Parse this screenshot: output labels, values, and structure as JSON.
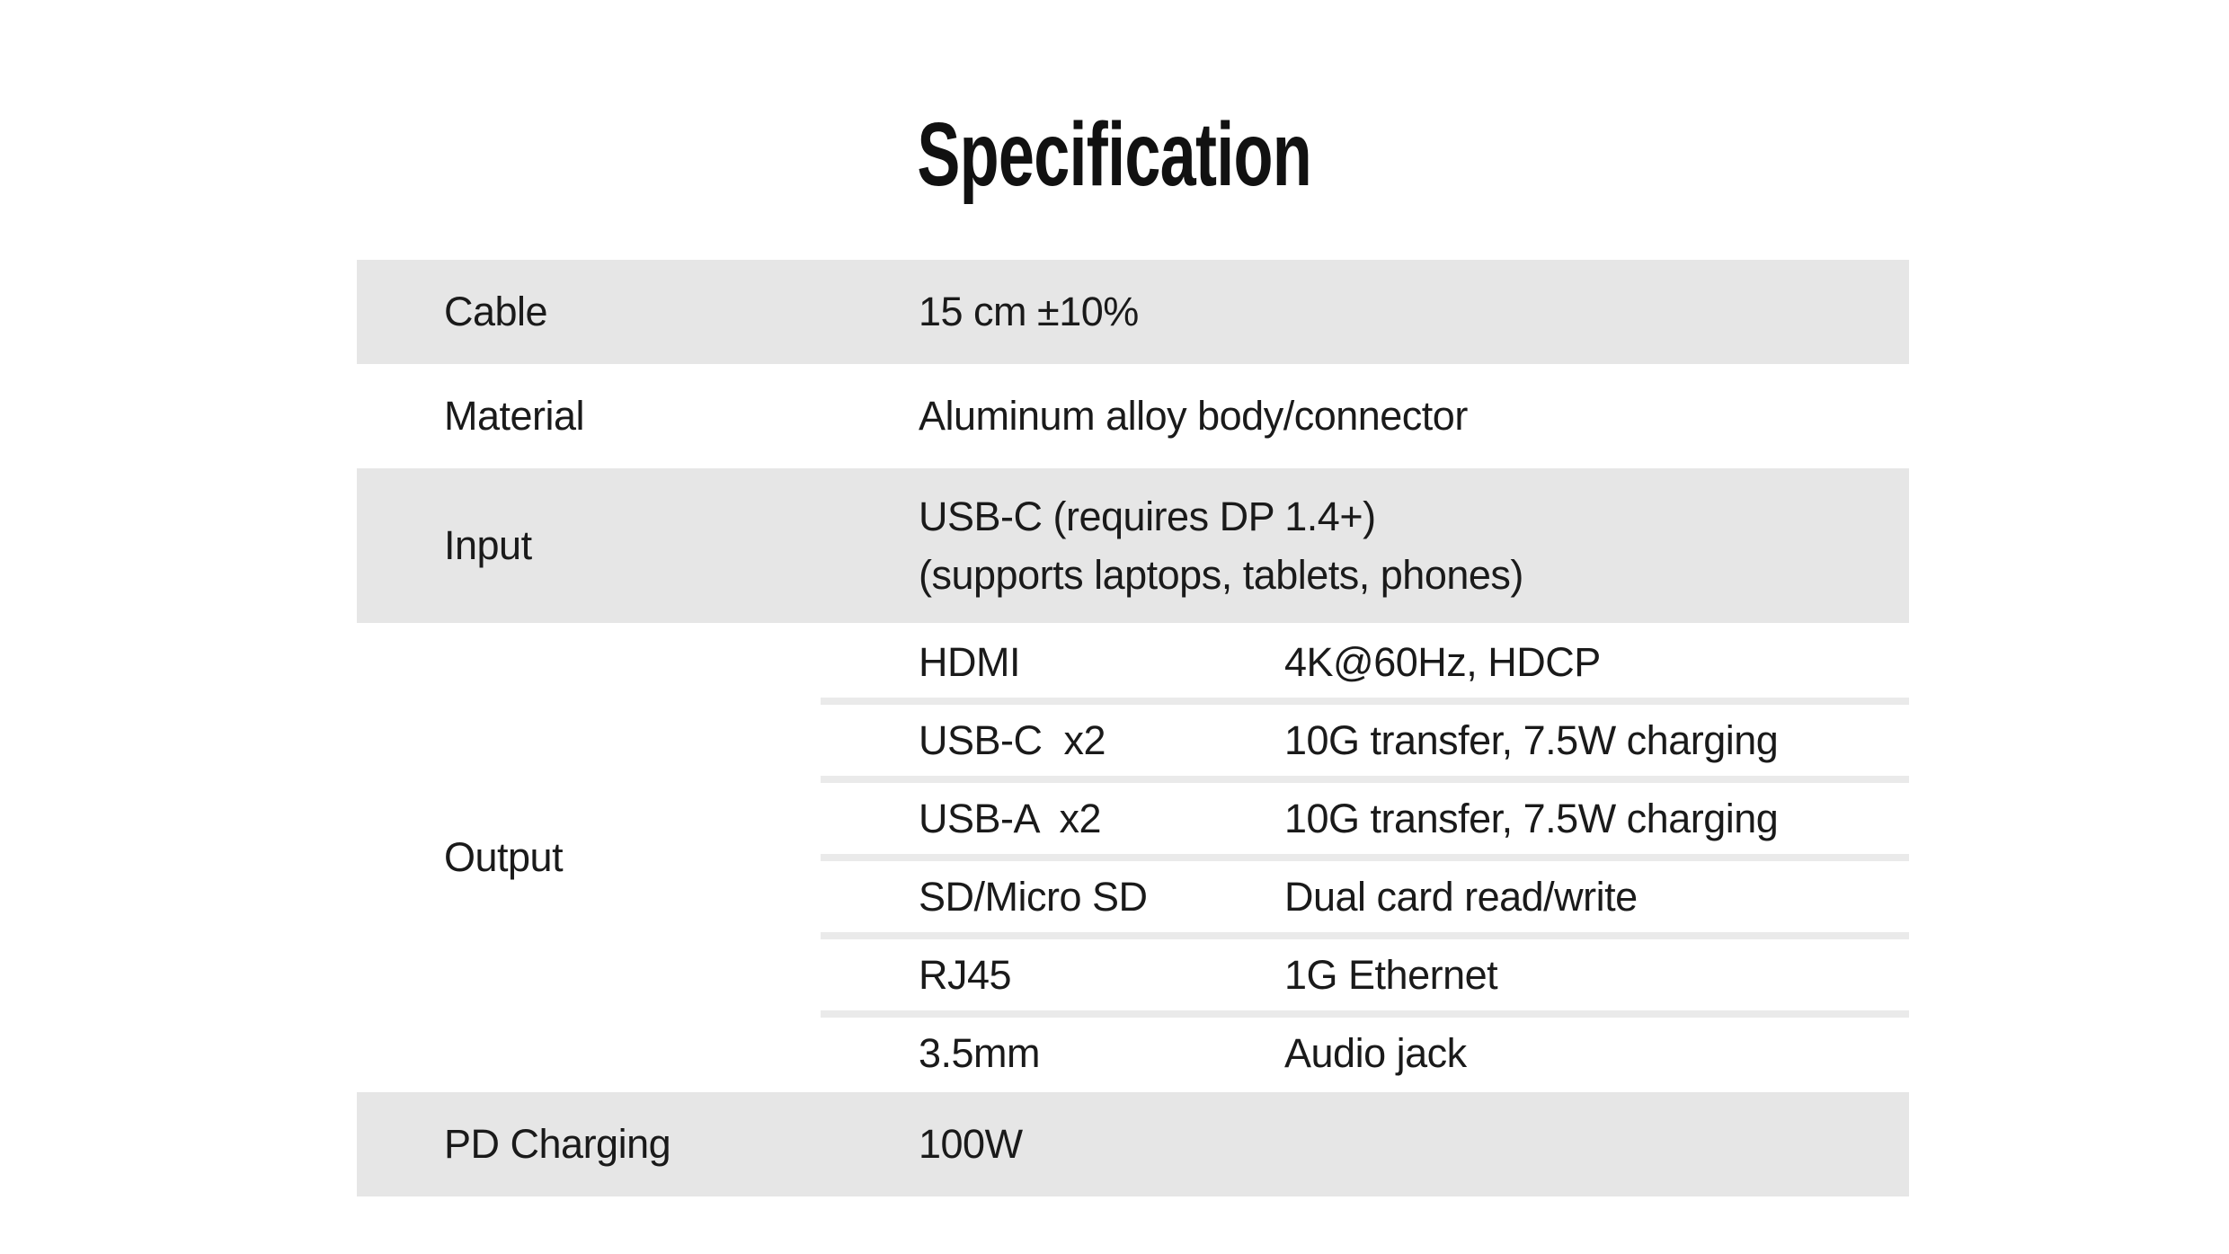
{
  "page": {
    "title": "Specification"
  },
  "colors": {
    "row_shade": "#e6e6e6",
    "divider": "#eaeaea",
    "text": "#1a1a1a",
    "background": "#ffffff"
  },
  "table": {
    "rows": [
      {
        "label": "Cable",
        "value": "15 cm ±10%",
        "shaded": true
      },
      {
        "label": "Material",
        "value": "Aluminum alloy body/connector",
        "shaded": false
      },
      {
        "label": "Input",
        "value_lines": [
          "USB-C (requires DP 1.4+)",
          "(supports laptops, tablets, phones)"
        ],
        "shaded": true
      },
      {
        "label": "Output",
        "shaded": false,
        "sub_rows": [
          {
            "name": "HDMI",
            "value": "4K@60Hz, HDCP"
          },
          {
            "name": "USB-C  x2",
            "value": "10G transfer, 7.5W charging"
          },
          {
            "name": "USB-A  x2",
            "value": "10G transfer, 7.5W charging"
          },
          {
            "name": "SD/Micro SD",
            "value": "Dual card read/write"
          },
          {
            "name": "RJ45",
            "value": "1G Ethernet"
          },
          {
            "name": "3.5mm",
            "value": "Audio jack"
          }
        ]
      },
      {
        "label": "PD Charging",
        "value": "100W",
        "shaded": true
      }
    ]
  }
}
